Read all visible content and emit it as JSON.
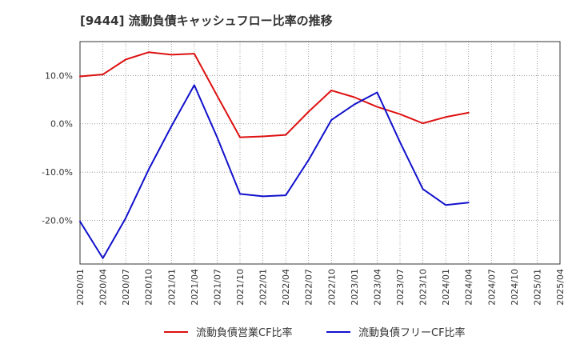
{
  "chart_data": {
    "type": "line",
    "title": "[9444]  流動負債キャッシュフロー比率の推移",
    "xlabel": "",
    "ylabel": "",
    "categories": [
      "2020/01",
      "2020/04",
      "2020/07",
      "2020/10",
      "2021/01",
      "2021/04",
      "2021/07",
      "2021/10",
      "2022/01",
      "2022/04",
      "2022/07",
      "2022/10",
      "2023/01",
      "2023/04",
      "2023/07",
      "2023/10",
      "2024/01",
      "2024/04",
      "2024/07",
      "2024/10",
      "2025/01",
      "2025/04"
    ],
    "ylim": [
      -29,
      17
    ],
    "yticks": [
      10,
      0,
      -10,
      -20
    ],
    "ytick_labels": [
      "10.0%",
      "0.0%",
      "-10.0%",
      "-20.0%"
    ],
    "grid": "dotted",
    "legend_position": "bottom",
    "series": [
      {
        "name": "流動負債営業CF比率",
        "color": "#dd1111",
        "values": [
          9.8,
          10.2,
          13.3,
          14.8,
          14.3,
          14.5,
          5.8,
          -2.8,
          -2.6,
          -2.3,
          2.5,
          6.9,
          5.5,
          3.5,
          2.0,
          0.1,
          1.4,
          2.3,
          null,
          null,
          null,
          null
        ]
      },
      {
        "name": "流動負債フリーCF比率",
        "color": "#1111cc",
        "values": [
          -20.2,
          -27.8,
          -19.5,
          -9.5,
          -0.5,
          8.0,
          -2.8,
          -14.5,
          -15.0,
          -14.8,
          -7.5,
          0.8,
          4.0,
          6.5,
          -3.8,
          -13.5,
          -16.8,
          -16.3,
          null,
          null,
          null,
          null
        ]
      }
    ]
  }
}
